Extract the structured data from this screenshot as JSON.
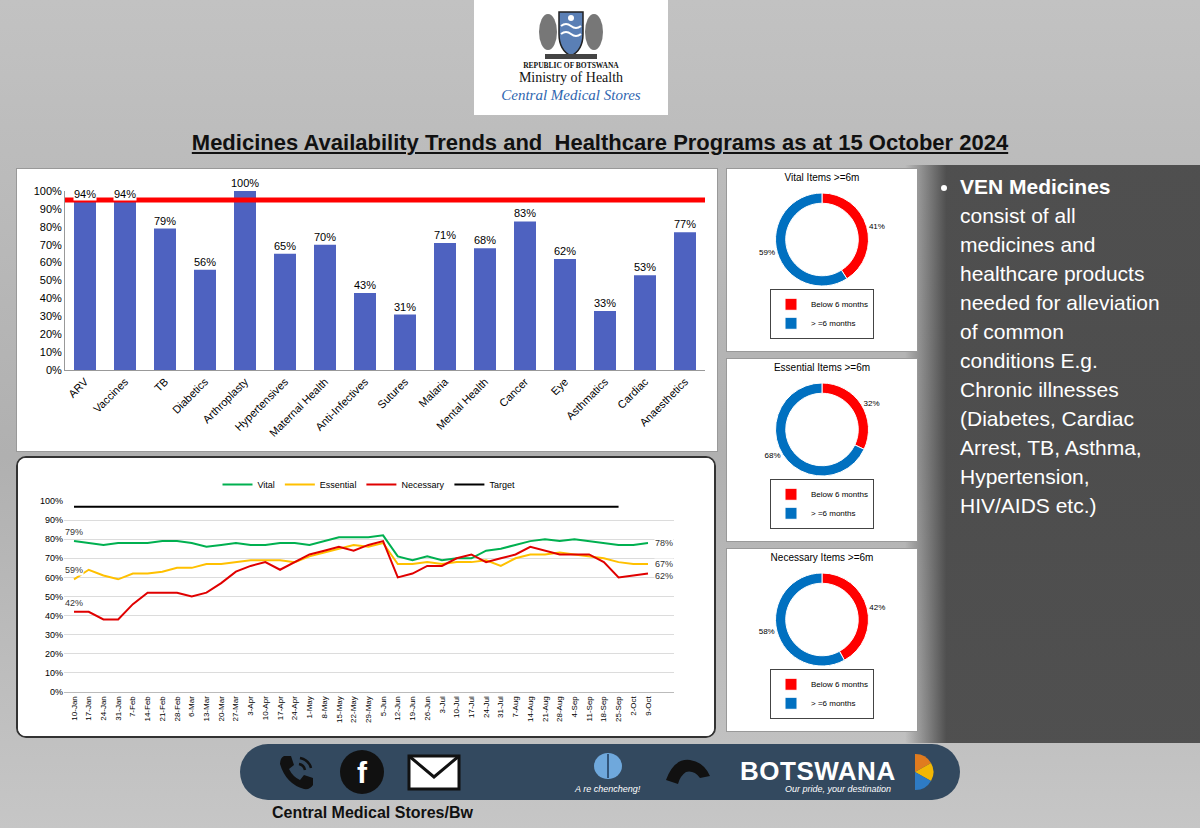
{
  "header": {
    "country": "REPUBLIC OF BOTSWANA",
    "ministry": "Ministry of Health",
    "unit": "Central Medical Stores"
  },
  "title": "Medicines Availability Trends and  Healthcare Programs as at 15 October 2024",
  "chart_data": [
    {
      "type": "bar",
      "categories": [
        "ARV",
        "Vaccines",
        "TB",
        "Diabetics",
        "Arthroplasty",
        "Hypertensives",
        "Maternal Health",
        "Anti-Infectives",
        "Sutures",
        "Malaria",
        "Mental Health",
        "Cancer",
        "Eye",
        "Asthmatics",
        "Cardiac",
        "Anaesthetics"
      ],
      "values": [
        94,
        94,
        79,
        56,
        100,
        65,
        70,
        43,
        31,
        71,
        68,
        83,
        62,
        33,
        53,
        77
      ],
      "value_labels": [
        "94%",
        "94%",
        "79%",
        "56%",
        "100%",
        "65%",
        "70%",
        "43%",
        "31%",
        "71%",
        "68%",
        "83%",
        "62%",
        "33%",
        "53%",
        "77%"
      ],
      "data_labels": true,
      "color": "#4e62c0",
      "target": {
        "value": 95,
        "color": "#ff0000"
      },
      "ylim": [
        0,
        100
      ],
      "yticks": [
        {
          "value": 0,
          "label": "0%"
        },
        {
          "value": 10,
          "label": "10%"
        },
        {
          "value": 20,
          "label": "20%"
        },
        {
          "value": 30,
          "label": "30%"
        },
        {
          "value": 40,
          "label": "40%"
        },
        {
          "value": 50,
          "label": "50%"
        },
        {
          "value": 60,
          "label": "60%"
        },
        {
          "value": 70,
          "label": "70%"
        },
        {
          "value": 80,
          "label": "80%"
        },
        {
          "value": 90,
          "label": "90%"
        },
        {
          "value": 100,
          "label": "100%"
        }
      ],
      "grid": false
    },
    {
      "type": "line",
      "categories": [
        "10-Jan",
        "17-Jan",
        "24-Jan",
        "31-Jan",
        "7-Feb",
        "14-Feb",
        "21-Feb",
        "28-Feb",
        "6-Mar",
        "13-Mar",
        "20-Mar",
        "27-Mar",
        "3-Apr",
        "10-Apr",
        "17-Apr",
        "24-Apr",
        "1-May",
        "8-May",
        "15-May",
        "22-May",
        "29-May",
        "5-Jun",
        "12-Jun",
        "19-Jun",
        "26-Jun",
        "3-Jul",
        "10-Jul",
        "17-Jul",
        "24-Jul",
        "31-Jul",
        "7-Aug",
        "14-Aug",
        "21-Aug",
        "28-Aug",
        "4-Sep",
        "11-Sep",
        "18-Sep",
        "25-Sep",
        "2-Oct",
        "9-Oct"
      ],
      "series": [
        {
          "name": "Vital",
          "color": "#00b050",
          "values": [
            79,
            78,
            77,
            78,
            78,
            78,
            79,
            79,
            78,
            76,
            77,
            78,
            77,
            77,
            78,
            78,
            77,
            79,
            81,
            81,
            81,
            82,
            71,
            69,
            71,
            69,
            70,
            70,
            74,
            75,
            77,
            79,
            80,
            79,
            80,
            79,
            78,
            77,
            77,
            78
          ],
          "value_labels": [
            "79%",
            null,
            null,
            null,
            null,
            null,
            null,
            null,
            null,
            null,
            null,
            null,
            null,
            null,
            null,
            null,
            null,
            null,
            null,
            null,
            null,
            null,
            null,
            null,
            null,
            null,
            null,
            null,
            null,
            null,
            null,
            null,
            null,
            null,
            null,
            null,
            null,
            null,
            null,
            "78%"
          ]
        },
        {
          "name": "Essential",
          "color": "#ffc000",
          "values": [
            59,
            64,
            61,
            59,
            62,
            62,
            63,
            65,
            65,
            67,
            67,
            68,
            69,
            69,
            69,
            68,
            71,
            73,
            75,
            77,
            76,
            78,
            67,
            67,
            68,
            67,
            68,
            68,
            69,
            66,
            70,
            72,
            72,
            73,
            72,
            71,
            70,
            68,
            67,
            67
          ],
          "value_labels": [
            "59%",
            null,
            null,
            null,
            null,
            null,
            null,
            null,
            null,
            null,
            null,
            null,
            null,
            null,
            null,
            null,
            null,
            null,
            null,
            null,
            null,
            null,
            null,
            null,
            null,
            null,
            null,
            null,
            null,
            null,
            null,
            null,
            null,
            null,
            null,
            null,
            null,
            null,
            null,
            "67%"
          ]
        },
        {
          "name": "Necessary",
          "color": "#e00000",
          "values": [
            42,
            42,
            38,
            38,
            46,
            52,
            52,
            52,
            50,
            52,
            57,
            63,
            66,
            68,
            64,
            68,
            72,
            74,
            76,
            74,
            77,
            79,
            60,
            62,
            66,
            66,
            70,
            72,
            68,
            70,
            72,
            76,
            74,
            72,
            72,
            72,
            68,
            60,
            61,
            62
          ],
          "value_labels": [
            "42%",
            null,
            null,
            null,
            null,
            null,
            null,
            null,
            null,
            null,
            null,
            null,
            null,
            null,
            null,
            null,
            null,
            null,
            null,
            null,
            null,
            null,
            null,
            null,
            null,
            null,
            null,
            null,
            null,
            null,
            null,
            null,
            null,
            null,
            null,
            null,
            null,
            null,
            null,
            "62%"
          ]
        },
        {
          "name": "Target",
          "color": "#000000",
          "values": [
            97,
            97,
            97,
            97,
            97,
            97,
            97,
            97,
            97,
            97,
            97,
            97,
            97,
            97,
            97,
            97,
            97,
            97,
            97,
            97,
            97,
            97,
            97,
            97,
            97,
            97,
            97,
            97,
            97,
            97,
            97,
            97,
            97,
            97,
            97,
            97,
            97,
            97,
            null,
            null
          ]
        }
      ],
      "ylim": [
        0,
        100
      ],
      "yticks": [
        {
          "value": 0,
          "label": "0%"
        },
        {
          "value": 10,
          "label": "10%"
        },
        {
          "value": 20,
          "label": "20%"
        },
        {
          "value": 30,
          "label": "30%"
        },
        {
          "value": 40,
          "label": "40%"
        },
        {
          "value": 50,
          "label": "50%"
        },
        {
          "value": 60,
          "label": "60%"
        },
        {
          "value": 70,
          "label": "70%"
        },
        {
          "value": 80,
          "label": "80%"
        },
        {
          "value": 90,
          "label": "90%"
        },
        {
          "value": 100,
          "label": "100%"
        }
      ],
      "grid": true,
      "legend": "top"
    },
    {
      "type": "pie",
      "title": "Vital Items >=6m",
      "categories": [
        "Below 6 months",
        "> =6 months"
      ],
      "values": [
        41,
        59
      ],
      "value_labels": [
        "41%",
        "59%"
      ],
      "colors": [
        "#ff0000",
        "#0070c0"
      ],
      "legend": "bottom"
    },
    {
      "type": "pie",
      "title": "Essential Items >=6m",
      "categories": [
        "Below 6 months",
        "> =6 months"
      ],
      "values": [
        32,
        68
      ],
      "value_labels": [
        "32%",
        "68%"
      ],
      "colors": [
        "#ff0000",
        "#0070c0"
      ],
      "legend": "bottom"
    },
    {
      "type": "pie",
      "title": "Necessary Items >=6m",
      "categories": [
        "Below 6 months",
        "> =6 months"
      ],
      "values": [
        42,
        58
      ],
      "value_labels": [
        "42%",
        "58%"
      ],
      "colors": [
        "#ff0000",
        "#0070c0"
      ],
      "legend": "bottom"
    }
  ],
  "note": {
    "heading": "VEN Medicines",
    "text": "consist of all medicines and healthcare products needed for alleviation of common conditions E.g. Chronic illnesses (Diabetes, Cardiac Arrest, TB, Asthma, Hypertension, HIV/AIDS etc.)"
  },
  "footer": {
    "facebook": "f",
    "slogan": "A re chencheng!",
    "brand": "BOTSWANA",
    "tagline": "Our pride, your destination",
    "contact": "Central Medical Stores/Bw"
  }
}
